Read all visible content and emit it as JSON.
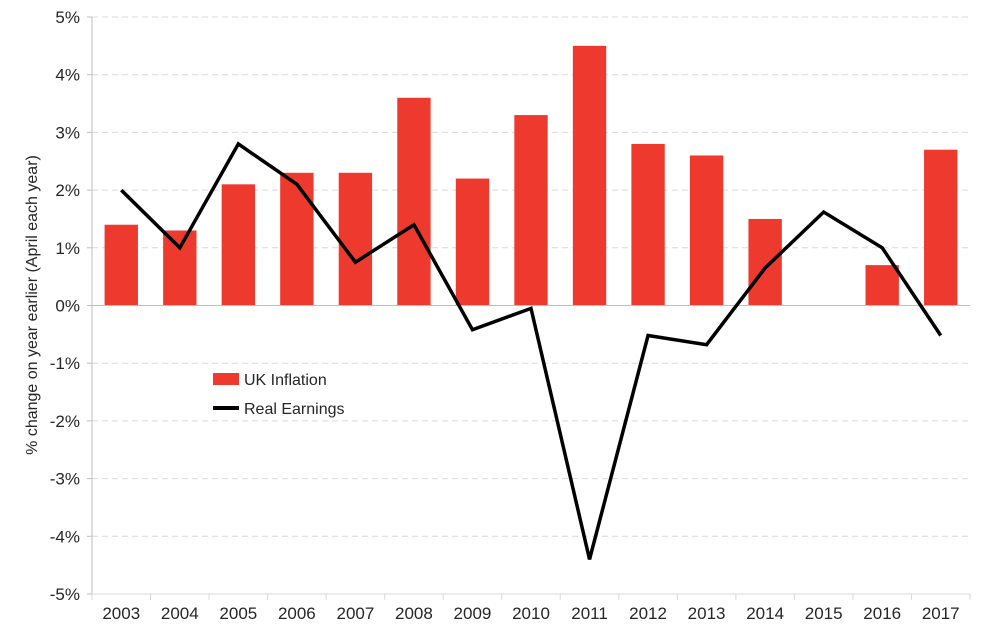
{
  "chart_data": {
    "type": "bar",
    "title": "",
    "xlabel": "",
    "ylabel": "% change on year earlier (April each year)",
    "categories": [
      "2003",
      "2004",
      "2005",
      "2006",
      "2007",
      "2008",
      "2009",
      "2010",
      "2011",
      "2012",
      "2013",
      "2014",
      "2015",
      "2016",
      "2017"
    ],
    "series": [
      {
        "name": "UK Inflation",
        "type": "bar",
        "color": "#ee3a2e",
        "values": [
          1.4,
          1.3,
          2.1,
          2.3,
          2.3,
          3.6,
          2.2,
          3.3,
          4.5,
          2.8,
          2.6,
          1.5,
          0.0,
          0.7,
          2.7
        ]
      },
      {
        "name": "Real Earnings",
        "type": "line",
        "color": "#000000",
        "values": [
          2.0,
          1.0,
          2.8,
          2.1,
          0.75,
          1.4,
          -0.42,
          -0.05,
          -4.4,
          -0.52,
          -0.68,
          0.65,
          1.62,
          1.0,
          -0.52
        ]
      }
    ],
    "ylim": [
      -5,
      5
    ],
    "yticks": [
      -5,
      -4,
      -3,
      -2,
      -1,
      0,
      1,
      2,
      3,
      4,
      5
    ],
    "ytick_labels": [
      "-5%",
      "-4%",
      "-3%",
      "-2%",
      "-1%",
      "0%",
      "1%",
      "2%",
      "3%",
      "4%",
      "5%"
    ],
    "grid": "horizontal dashed",
    "legend_position": "inside-left-middle"
  }
}
